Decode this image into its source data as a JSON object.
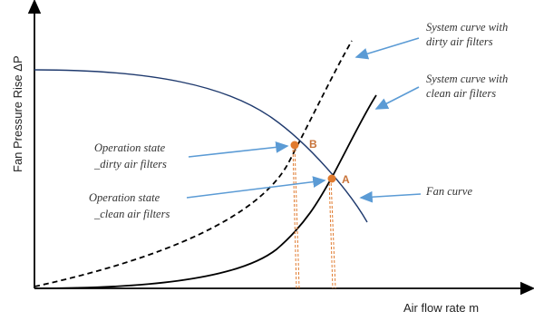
{
  "axes": {
    "y_label": "Fan Pressure Rise ΔP",
    "x_label": "Air flow rate m"
  },
  "annotations": {
    "system_dirty": [
      "System curve with",
      "dirty air filters"
    ],
    "system_clean": [
      "System curve with",
      "clean air filters"
    ],
    "fan_curve": [
      "Fan curve"
    ],
    "op_dirty": [
      "Operation state",
      "_dirty air filters"
    ],
    "op_clean": [
      "Operation state",
      "_clean air filters"
    ]
  },
  "points": {
    "b": "B",
    "a": "A"
  },
  "colors": {
    "fan_curve": "#1f3a6e",
    "system_curve": "#000000",
    "arrow": "#5b9bd5",
    "point": "#e07a2e",
    "point_label": "#c8733a",
    "drop_line": "#e07a2e"
  }
}
